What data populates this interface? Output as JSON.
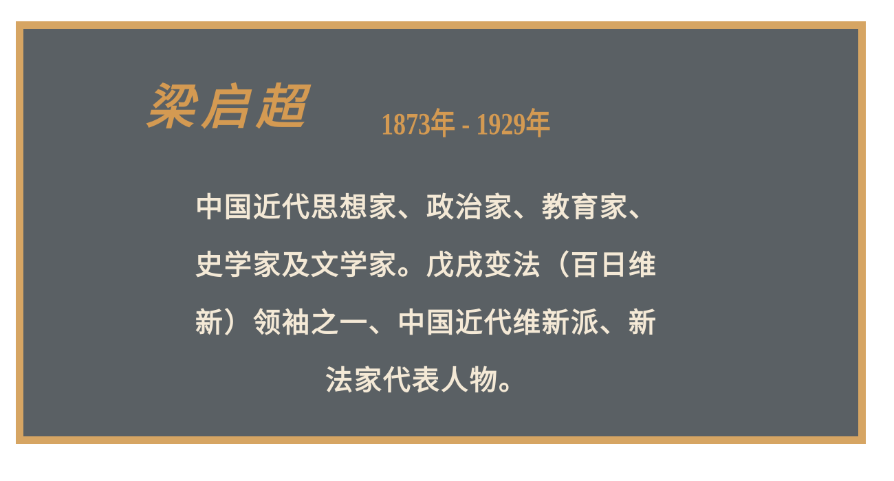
{
  "card": {
    "name": "梁启超",
    "years": "1873年 - 1929年",
    "bio_lines": [
      "中国近代思想家、政治家、教育家、",
      "史学家及文学家。戊戌变法（百日维",
      "新）领袖之一、中国近代维新派、新",
      "法家代表人物。"
    ]
  },
  "colors": {
    "border": "#d6a563",
    "background": "#5a6064",
    "accent_text": "#d49a52",
    "body_text": "#f4e9d6"
  }
}
